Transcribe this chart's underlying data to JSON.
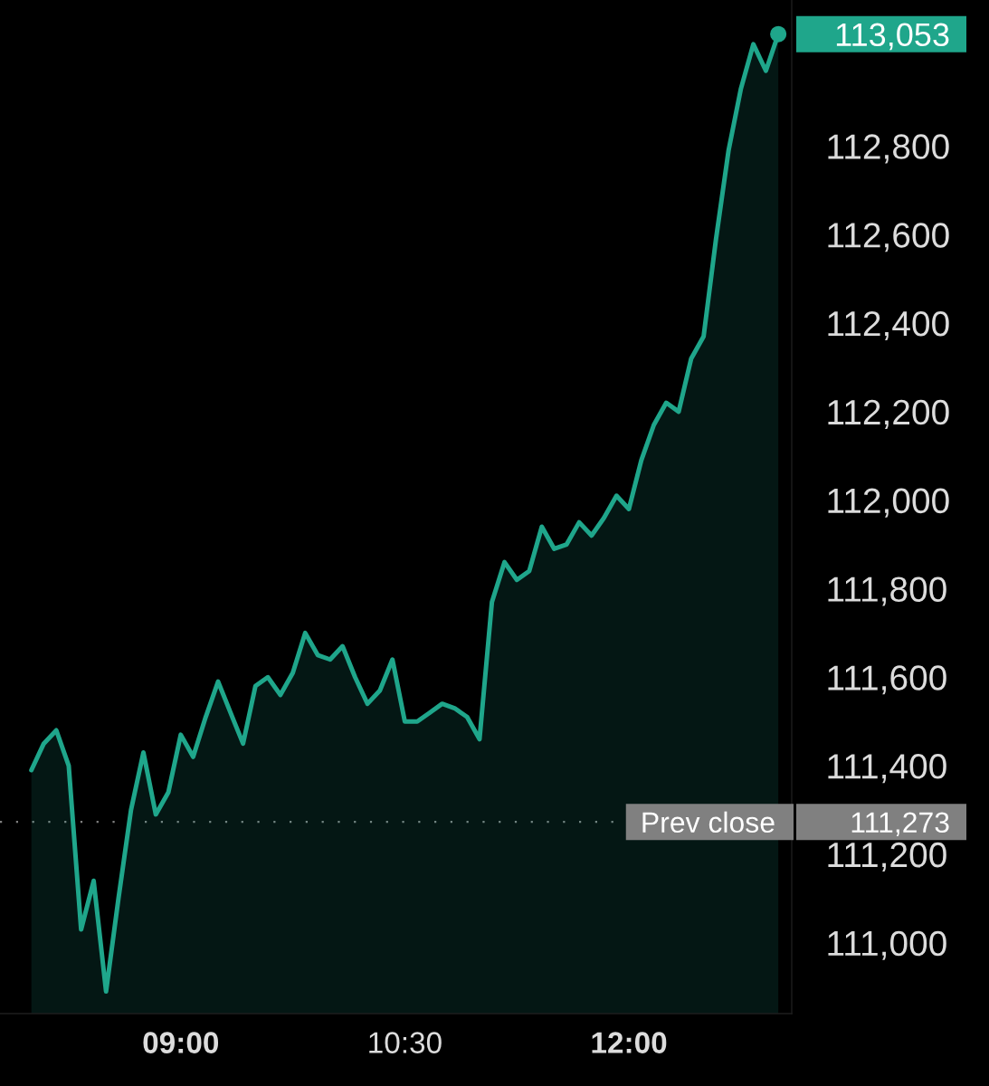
{
  "chart_data": {
    "type": "area",
    "x": [
      8,
      8.083,
      8.167,
      8.25,
      8.333,
      8.417,
      8.5,
      8.583,
      8.667,
      8.75,
      8.833,
      8.917,
      9,
      9.083,
      9.167,
      9.25,
      9.333,
      9.417,
      9.5,
      9.583,
      9.667,
      9.75,
      9.833,
      9.917,
      10,
      10.083,
      10.167,
      10.25,
      10.333,
      10.417,
      10.5,
      10.583,
      10.667,
      10.75,
      10.833,
      10.917,
      11,
      11.083,
      11.167,
      11.25,
      11.333,
      11.417,
      11.5,
      11.583,
      11.667,
      11.75,
      11.833,
      11.917,
      12,
      12.083,
      12.167,
      12.25,
      12.333,
      12.417,
      12.5,
      12.583,
      12.667,
      12.75,
      12.833,
      12.917,
      13
    ],
    "series": [
      {
        "color": "#1fa68b",
        "values": [
          111390,
          111450,
          111480,
          111400,
          111030,
          111140,
          110890,
          111100,
          111300,
          111430,
          111290,
          111340,
          111470,
          111420,
          111510,
          111590,
          111520,
          111450,
          111580,
          111600,
          111560,
          111610,
          111700,
          111650,
          111640,
          111670,
          111600,
          111540,
          111570,
          111640,
          111500,
          111500,
          111520,
          111540,
          111530,
          111510,
          111460,
          111770,
          111860,
          111820,
          111840,
          111940,
          111890,
          111900,
          111950,
          111920,
          111960,
          112010,
          111980,
          112090,
          112170,
          112220,
          112200,
          112320,
          112370,
          112590,
          112790,
          112930,
          113030,
          112970,
          113053
        ],
        "value_labels": [
          null,
          null,
          null,
          null,
          null,
          null,
          null,
          null,
          null,
          null,
          null,
          null,
          null,
          null,
          null,
          null,
          null,
          null,
          null,
          null,
          null,
          null,
          null,
          null,
          null,
          null,
          null,
          null,
          null,
          null,
          null,
          null,
          null,
          null,
          null,
          null,
          null,
          null,
          null,
          null,
          null,
          null,
          null,
          null,
          null,
          null,
          null,
          null,
          null,
          null,
          null,
          null,
          null,
          null,
          null,
          null,
          null,
          null,
          null,
          null,
          "113,053"
        ]
      }
    ],
    "xlim": [
      7.79,
      13.09
    ],
    "xticks": [
      {
        "value": 9,
        "label": "09:00"
      },
      {
        "value": 10.5,
        "label": "10:30"
      },
      {
        "value": 12,
        "label": "12:00"
      }
    ],
    "ylim": [
      110840,
      113130
    ],
    "yticks": [
      {
        "value": 111000,
        "label": "111,000"
      },
      {
        "value": 111200,
        "label": "111,200"
      },
      {
        "value": 111400,
        "label": "111,400"
      },
      {
        "value": 111600,
        "label": "111,600"
      },
      {
        "value": 111800,
        "label": "111,800"
      },
      {
        "value": 112000,
        "label": "112,000"
      },
      {
        "value": 112200,
        "label": "112,200"
      },
      {
        "value": 112400,
        "label": "112,400"
      },
      {
        "value": 112600,
        "label": "112,600"
      },
      {
        "value": 112800,
        "label": "112,800"
      }
    ],
    "ref_lines": [
      {
        "axis": "y",
        "value": 111273,
        "label": "Prev close",
        "color": "#808080",
        "line_style": "dotted"
      }
    ],
    "annotations": [
      "111,273"
    ]
  }
}
